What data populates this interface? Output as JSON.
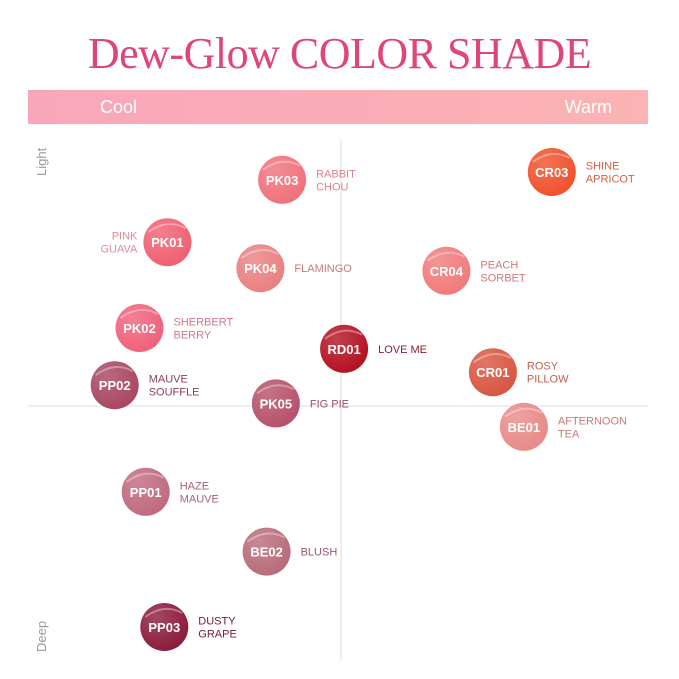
{
  "title": "Dew-Glow COLOR SHADE",
  "chart_data": {
    "type": "scatter",
    "title": "Dew-Glow COLOR SHADE",
    "x_axis": {
      "left_label": "Cool",
      "right_label": "Warm",
      "range": [
        -1,
        1
      ]
    },
    "y_axis": {
      "top_label": "Light",
      "bottom_label": "Deep",
      "range": [
        -1,
        1
      ]
    },
    "grid": false,
    "points": [
      {
        "code": "PK03",
        "name": [
          "RABBIT",
          "CHOU"
        ],
        "x": -0.19,
        "y": 0.87,
        "color": "#f0707a",
        "label_color": "#e0808a",
        "label_side": "right"
      },
      {
        "code": "CR03",
        "name": [
          "SHINE",
          "APRICOT"
        ],
        "x": 0.68,
        "y": 0.9,
        "color": "#f0502a",
        "label_color": "#d8603a",
        "label_side": "right"
      },
      {
        "code": "PK01",
        "name": [
          "PINK",
          "GUAVA"
        ],
        "x": -0.56,
        "y": 0.63,
        "color": "#f05f70",
        "label_color": "#e08a98",
        "label_side": "left"
      },
      {
        "code": "PK04",
        "name": [
          "FLAMINGO"
        ],
        "x": -0.26,
        "y": 0.53,
        "color": "#ea7f80",
        "label_color": "#c87880",
        "label_side": "right"
      },
      {
        "code": "CR04",
        "name": [
          "PEACH",
          "SORBET"
        ],
        "x": 0.34,
        "y": 0.52,
        "color": "#f07a7a",
        "label_color": "#d07878",
        "label_side": "right"
      },
      {
        "code": "PK02",
        "name": [
          "SHERBERT",
          "BERRY"
        ],
        "x": -0.65,
        "y": 0.3,
        "color": "#f0607a",
        "label_color": "#d07888",
        "label_side": "right"
      },
      {
        "code": "RD01",
        "name": [
          "LOVE ME"
        ],
        "x": 0.01,
        "y": 0.22,
        "color": "#b31020",
        "label_color": "#8a2030",
        "label_side": "right"
      },
      {
        "code": "PP02",
        "name": [
          "MAUVE",
          "SOUFFLE"
        ],
        "x": -0.73,
        "y": 0.08,
        "color": "#a84560",
        "label_color": "#8a4058",
        "label_side": "right"
      },
      {
        "code": "CR01",
        "name": [
          "ROSY",
          "PILLOW"
        ],
        "x": 0.49,
        "y": 0.13,
        "color": "#d85540",
        "label_color": "#c06050",
        "label_side": "right"
      },
      {
        "code": "PK05",
        "name": [
          "FIG PIE"
        ],
        "x": -0.21,
        "y": 0.01,
        "color": "#b5506a",
        "label_color": "#9a5066",
        "label_side": "right"
      },
      {
        "code": "BE01",
        "name": [
          "AFTERNOON",
          "TEA"
        ],
        "x": 0.59,
        "y": -0.08,
        "color": "#e88a88",
        "label_color": "#c87878",
        "label_side": "right"
      },
      {
        "code": "PP01",
        "name": [
          "HAZE",
          "MAUVE"
        ],
        "x": -0.63,
        "y": -0.33,
        "color": "#c0687e",
        "label_color": "#a86078",
        "label_side": "right"
      },
      {
        "code": "BE02",
        "name": [
          "BLUSH"
        ],
        "x": -0.24,
        "y": -0.56,
        "color": "#b86a7a",
        "label_color": "#985868",
        "label_side": "right"
      },
      {
        "code": "PP03",
        "name": [
          "DUSTY",
          "GRAPE"
        ],
        "x": -0.57,
        "y": -0.85,
        "color": "#8a1a3a",
        "label_color": "#702038",
        "label_side": "right"
      }
    ]
  }
}
